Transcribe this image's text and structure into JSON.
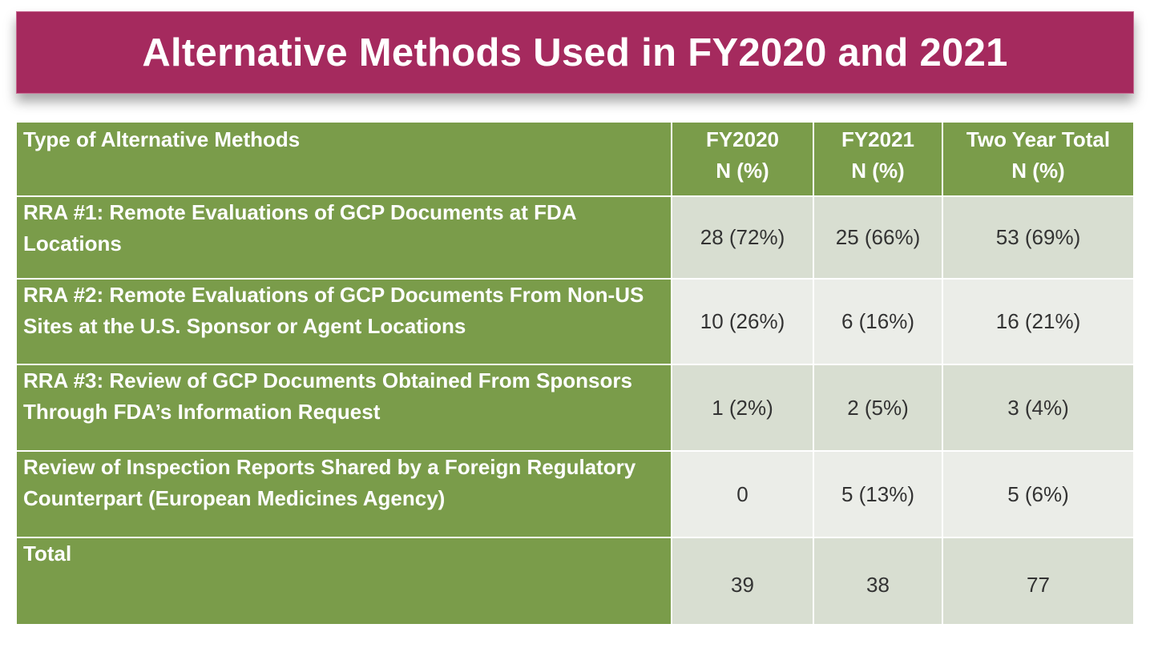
{
  "title": "Alternative Methods Used in FY2020 and 2021",
  "table": {
    "headers": [
      {
        "line1": "Type of Alternative Methods",
        "line2": ""
      },
      {
        "line1": "FY2020",
        "line2": "N (%)"
      },
      {
        "line1": "FY2021",
        "line2": "N (%)"
      },
      {
        "line1": "Two Year Total",
        "line2": "N (%)"
      }
    ],
    "rows": [
      {
        "label": "RRA #1: Remote Evaluations of GCP Documents at FDA Locations",
        "fy2020": "28 (72%)",
        "fy2021": "25 (66%)",
        "total": "53 (69%)"
      },
      {
        "label": "RRA #2: Remote Evaluations of GCP Documents From Non-US Sites at the U.S. Sponsor or Agent Locations",
        "fy2020": "10 (26%)",
        "fy2021": "6 (16%)",
        "total": "16 (21%)"
      },
      {
        "label": "RRA #3: Review of GCP Documents Obtained From Sponsors Through FDA’s Information Request",
        "fy2020": "1 (2%)",
        "fy2021": "2 (5%)",
        "total": "3 (4%)"
      },
      {
        "label": "Review of Inspection Reports Shared by a Foreign Regulatory Counterpart (European Medicines Agency)",
        "fy2020": "0",
        "fy2021": "5 (13%)",
        "total": "5 (6%)"
      },
      {
        "label": "Total",
        "fy2020": "39",
        "fy2021": "38",
        "total": "77"
      }
    ]
  },
  "colors": {
    "title_bg": "#A52A5E",
    "header_green": "#7A9C4A",
    "cell_dark": "#D8DED1",
    "cell_light": "#EBEDE8"
  }
}
